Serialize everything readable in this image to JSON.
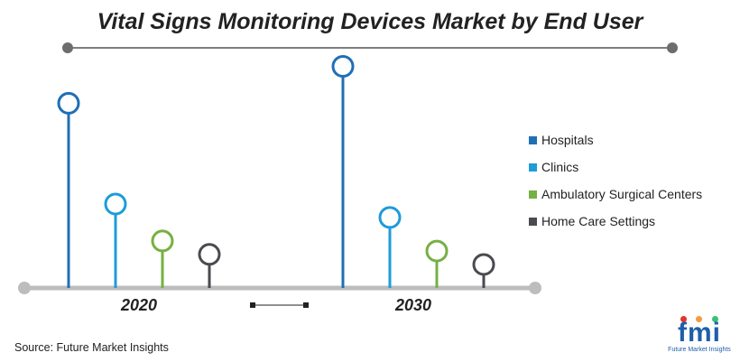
{
  "chart_data": {
    "type": "lollipop",
    "title": "Vital Signs Monitoring Devices Market by End User",
    "categories": [
      "2020",
      "2030"
    ],
    "series": [
      {
        "name": "Hospitals",
        "color": "#1f6fb6",
        "values": [
          5.5,
          6.6
        ]
      },
      {
        "name": "Clinics",
        "color": "#1e9cd8",
        "values": [
          2.5,
          2.1
        ]
      },
      {
        "name": "Ambulatory Surgical Centers",
        "color": "#76b043",
        "values": [
          1.4,
          1.1
        ]
      },
      {
        "name": "Home Care Settings",
        "color": "#4a4a4f",
        "values": [
          1.0,
          0.7
        ]
      }
    ],
    "ylim": [
      0,
      7.5
    ],
    "legend_position": "right"
  },
  "source": "Source: Future Market Insights",
  "logo": {
    "text": "fmi",
    "subtitle": "Future Market Insights"
  },
  "colors": {
    "axis": "#bdbdbd",
    "title_rule": "#555555",
    "rule_dot": "#6d6d6d"
  }
}
